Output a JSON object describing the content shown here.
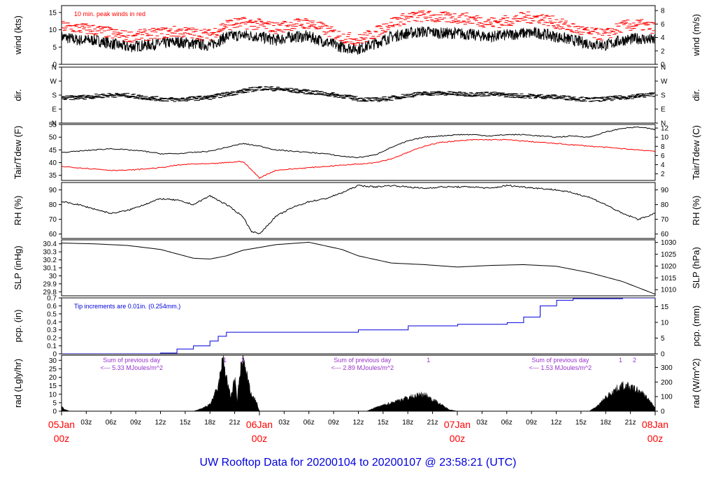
{
  "chart_data": {
    "type": "line",
    "title": "UW Rooftop Data for 20200104  to  20200107 @ 23:58:21  (UTC)",
    "x_axis": {
      "hours_span": 72,
      "tick_labels": [
        "03z",
        "06z",
        "09z",
        "12z",
        "15z",
        "18z",
        "21z",
        "03z",
        "06z",
        "09z",
        "12z",
        "15z",
        "18z",
        "21z",
        "03z",
        "06z",
        "09z",
        "12z",
        "15z",
        "18z",
        "21z"
      ],
      "tick_hours": [
        3,
        6,
        9,
        12,
        15,
        18,
        21,
        27,
        30,
        33,
        36,
        39,
        42,
        45,
        51,
        54,
        57,
        60,
        63,
        66,
        69
      ],
      "day_labels": [
        {
          "hour": 0,
          "line1": "05Jan",
          "line2": "00z"
        },
        {
          "hour": 24,
          "line1": "06Jan",
          "line2": "00z"
        },
        {
          "hour": 48,
          "line1": "07Jan",
          "line2": "00z"
        },
        {
          "hour": 72,
          "line1": "08Jan",
          "line2": "00z"
        }
      ]
    },
    "panels": [
      {
        "id": "wind",
        "ylabel": "wind (kts)",
        "ylabel_right": "wind (m/s)",
        "ylim": [
          0,
          17
        ],
        "yticks": [
          0,
          5,
          10,
          15
        ],
        "right_ylim": [
          0,
          8.745
        ],
        "right_yticks": [
          0,
          2,
          4,
          6,
          8
        ],
        "annotation": "10 min. peak winds in red",
        "series": [
          {
            "name": "wind speed",
            "color": "#000000",
            "style": "noisy-line",
            "hours": [
              0,
              2,
              4,
              6,
              8,
              10,
              12,
              14,
              16,
              18,
              20,
              22,
              24,
              26,
              28,
              30,
              32,
              34,
              36,
              38,
              40,
              42,
              44,
              46,
              48,
              50,
              52,
              54,
              56,
              58,
              60,
              62,
              64,
              66,
              68,
              70,
              72
            ],
            "values": [
              8,
              7,
              7,
              6,
              5,
              5.5,
              6,
              6.5,
              6,
              5.5,
              8,
              8.5,
              8,
              7,
              8,
              8,
              6.5,
              5,
              4.5,
              6,
              8,
              9,
              9.5,
              9,
              9,
              8.5,
              8,
              8.5,
              9,
              9,
              8,
              7,
              6,
              5.5,
              7,
              7.5,
              7
            ]
          },
          {
            "name": "10 min. peak",
            "color": "#ff0000",
            "style": "dash-points",
            "hours": [
              0,
              2,
              4,
              6,
              8,
              10,
              12,
              14,
              16,
              18,
              20,
              22,
              24,
              26,
              28,
              30,
              32,
              34,
              36,
              38,
              40,
              42,
              44,
              46,
              48,
              50,
              52,
              54,
              56,
              58,
              60,
              62,
              64,
              66,
              68,
              70,
              72
            ],
            "values": [
              11,
              10.5,
              10,
              9,
              8,
              8.5,
              9,
              9.5,
              9,
              8.5,
              11.5,
              12,
              11.5,
              10.5,
              11.5,
              12,
              10,
              8,
              7,
              9,
              12,
              13.5,
              14,
              13.5,
              13.5,
              13,
              12,
              12.5,
              13.5,
              13.5,
              12,
              10.5,
              9,
              8.5,
              11,
              11.5,
              10.5
            ]
          }
        ]
      },
      {
        "id": "dir",
        "ylabel": "dir.",
        "ylabel_right": "dir.",
        "ylim": [
          0,
          360
        ],
        "ytick_values": [
          0,
          90,
          180,
          270,
          360
        ],
        "ytick_labels": [
          "N",
          "E",
          "S",
          "W",
          "N"
        ],
        "series": [
          {
            "name": "wind direction",
            "color": "#000000",
            "style": "dash-points",
            "hours": [
              0,
              2,
              4,
              6,
              8,
              10,
              12,
              14,
              16,
              18,
              20,
              22,
              24,
              26,
              28,
              30,
              32,
              34,
              36,
              38,
              40,
              42,
              44,
              46,
              48,
              50,
              52,
              54,
              56,
              58,
              60,
              62,
              64,
              66,
              68,
              70,
              72
            ],
            "values": [
              160,
              165,
              172,
              180,
              178,
              165,
              155,
              150,
              158,
              165,
              185,
              205,
              225,
              220,
              210,
              200,
              188,
              175,
              155,
              150,
              160,
              178,
              190,
              192,
              188,
              185,
              188,
              180,
              175,
              172,
              168,
              160,
              150,
              155,
              165,
              175,
              185
            ]
          }
        ]
      },
      {
        "id": "temp",
        "ylabel": "Tair/Tdew (F)",
        "ylabel_right": "Tair/Tdew (C)",
        "ylim": [
          33,
          55
        ],
        "yticks": [
          35,
          40,
          45,
          50,
          55
        ],
        "right_ylim": [
          0.56,
          12.78
        ],
        "right_yticks": [
          2,
          4,
          6,
          8,
          10,
          12
        ],
        "series": [
          {
            "name": "Tair",
            "color": "#000000",
            "hours": [
              0,
              2,
              4,
              6,
              8,
              10,
              12,
              14,
              16,
              18,
              20,
              22,
              24,
              26,
              28,
              30,
              32,
              34,
              36,
              38,
              40,
              42,
              44,
              46,
              48,
              50,
              52,
              54,
              56,
              58,
              60,
              62,
              64,
              66,
              68,
              70,
              72
            ],
            "values": [
              44,
              44.5,
              45,
              45.5,
              45,
              44.5,
              43.5,
              43.5,
              44,
              44.5,
              46,
              47.5,
              46.5,
              45,
              44.5,
              44,
              43.5,
              42.5,
              42,
              43,
              46,
              48.5,
              50,
              50.5,
              51,
              51,
              50.5,
              51,
              51,
              50.5,
              50,
              50.5,
              50,
              52,
              53.5,
              54,
              53
            ]
          },
          {
            "name": "Tdew",
            "color": "#ff0000",
            "hours": [
              0,
              2,
              4,
              6,
              8,
              10,
              12,
              14,
              16,
              18,
              20,
              22,
              24,
              26,
              28,
              30,
              32,
              34,
              36,
              38,
              40,
              42,
              44,
              46,
              48,
              50,
              52,
              54,
              56,
              58,
              60,
              62,
              64,
              66,
              68,
              70,
              72
            ],
            "values": [
              38.5,
              38,
              37.5,
              37,
              37,
              37.5,
              38,
              39,
              39.5,
              39.5,
              40,
              40.5,
              34,
              37,
              37.5,
              38,
              38.5,
              39,
              39.5,
              40,
              41.5,
              44,
              46.5,
              48,
              48.5,
              49,
              49,
              49,
              48.5,
              48,
              47.5,
              47,
              46.5,
              46,
              45.5,
              45,
              44.5
            ]
          }
        ]
      },
      {
        "id": "rh",
        "ylabel": "RH (%)",
        "ylabel_right": "RH (%)",
        "ylim": [
          57,
          95
        ],
        "yticks": [
          60,
          70,
          80,
          90
        ],
        "series": [
          {
            "name": "RH",
            "color": "#000000",
            "hours": [
              0,
              2,
              4,
              6,
              8,
              10,
              12,
              14,
              16,
              18,
              20,
              22,
              23,
              24,
              26,
              28,
              30,
              32,
              34,
              36,
              38,
              40,
              42,
              44,
              46,
              48,
              50,
              52,
              54,
              56,
              58,
              60,
              62,
              64,
              66,
              68,
              70,
              72
            ],
            "values": [
              82,
              80,
              77,
              74,
              76,
              80,
              84,
              83,
              80,
              86,
              80,
              72,
              62,
              60,
              72,
              78,
              82,
              84,
              88,
              93,
              92,
              93,
              92,
              91,
              92,
              92,
              92,
              91,
              93,
              92,
              91,
              90,
              88,
              85,
              80,
              74,
              70,
              74
            ]
          }
        ]
      },
      {
        "id": "slp",
        "ylabel": "SLP (inHg)",
        "ylabel_right": "SLP (hPa)",
        "ylim": [
          29.75,
          30.45
        ],
        "yticks": [
          29.8,
          29.9,
          30.0,
          30.1,
          30.2,
          30.3,
          30.4
        ],
        "right_ylim": [
          1007.4,
          1031.1
        ],
        "right_yticks": [
          1010,
          1015,
          1020,
          1025,
          1030
        ],
        "series": [
          {
            "name": "SLP",
            "color": "#000000",
            "hours": [
              0,
              4,
              8,
              12,
              16,
              18,
              20,
              22,
              26,
              30,
              34,
              36,
              40,
              44,
              48,
              52,
              56,
              60,
              64,
              68,
              72
            ],
            "values": [
              30.41,
              30.4,
              30.38,
              30.33,
              30.22,
              30.21,
              30.25,
              30.32,
              30.39,
              30.42,
              30.33,
              30.25,
              30.16,
              30.14,
              30.11,
              30.13,
              30.14,
              30.12,
              30.04,
              29.93,
              29.77
            ]
          }
        ]
      },
      {
        "id": "pcp",
        "ylabel": "pcp. (in)",
        "ylabel_right": "pcp. (mm)",
        "ylim": [
          0,
          0.7
        ],
        "yticks": [
          0,
          0.1,
          0.2,
          0.3,
          0.4,
          0.5,
          0.6,
          0.7
        ],
        "right_ylim": [
          0,
          17.78
        ],
        "right_yticks": [
          0,
          5,
          10,
          15
        ],
        "annotation": "Tip increments are 0.01in. (0.254mm.)",
        "series": [
          {
            "name": "cumulative precipitation",
            "color": "#0000dd",
            "style": "step",
            "hours": [
              0,
              12,
              14,
              16,
              18,
              19,
              20,
              24,
              30,
              36,
              42,
              48,
              54,
              56,
              58,
              60,
              62,
              68,
              72
            ],
            "values": [
              0,
              0.01,
              0.06,
              0.1,
              0.16,
              0.22,
              0.27,
              0.27,
              0.27,
              0.3,
              0.35,
              0.37,
              0.39,
              0.46,
              0.6,
              0.67,
              0.69,
              0.7,
              0.7
            ]
          }
        ]
      },
      {
        "id": "rad",
        "ylabel": "rad (Lgly/hr)",
        "ylabel_right": "rad (W/m^2)",
        "ylim": [
          0,
          33
        ],
        "yticks": [
          0,
          5,
          10,
          15,
          20,
          25,
          30
        ],
        "right_ylim": [
          0,
          383.6
        ],
        "right_yticks": [
          0,
          100,
          200,
          300
        ],
        "annotations": [
          {
            "hour": 8.5,
            "line1": "Sum of previous day",
            "line2": "<--- 5.33 MJoules/m^2"
          },
          {
            "hour": 36.5,
            "line1": "Sum of previous day",
            "line2": "<--- 2.89 MJoules/m^2"
          },
          {
            "hour": 60.5,
            "line1": "Sum of previous day",
            "line2": "<--- 1.53 MJoules/m^2"
          }
        ],
        "markers": [
          {
            "hour": 19.8,
            "text": "1"
          },
          {
            "hour": 22.0,
            "text": "2"
          },
          {
            "hour": 44.5,
            "text": "1"
          },
          {
            "hour": 67.8,
            "text": "1"
          },
          {
            "hour": 69.5,
            "text": "2"
          }
        ],
        "series": [
          {
            "name": "solar radiation",
            "color": "#000000",
            "style": "area",
            "hours": [
              0,
              0.4,
              1,
              16,
              17,
              18,
              19,
              19.6,
              20,
              20.5,
              21,
              21.3,
              21.7,
              22,
              22.5,
              23,
              23.6,
              24,
              37,
              38,
              40,
              42,
              43,
              44,
              45,
              46,
              47,
              48,
              64,
              65,
              66,
              67,
              68,
              69,
              70,
              71,
              72
            ],
            "values": [
              3,
              1,
              0,
              0,
              1.5,
              4,
              14,
              31,
              20,
              8,
              19,
              6,
              25,
              31,
              20,
              10,
              6,
              0,
              0,
              2,
              5,
              8,
              9,
              10,
              7,
              4,
              1,
              0,
              0,
              3,
              8,
              12,
              15,
              14,
              12,
              8,
              2
            ]
          }
        ]
      }
    ]
  }
}
